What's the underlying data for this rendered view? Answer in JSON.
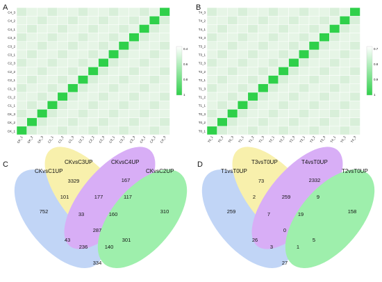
{
  "panels": {
    "A": "A",
    "B": "B",
    "C": "C",
    "D": "D"
  },
  "heatmap_A": {
    "rows": [
      "C4_3",
      "C4_2",
      "C4_1",
      "C3_3",
      "C3_2",
      "C3_1",
      "C2_3",
      "C2_2",
      "C2_1",
      "C1_3",
      "C1_2",
      "C1_1",
      "CK_3",
      "CK_2",
      "CK_1"
    ],
    "cols": [
      "CK_1",
      "CK_2",
      "CK_3",
      "C1_1",
      "C1_2",
      "C1_3",
      "C2_1",
      "C2_2",
      "C2_3",
      "C3_1",
      "C3_2",
      "C3_3",
      "C4_1",
      "C4_2",
      "C4_3"
    ],
    "legend_ticks": [
      "0.4",
      "0.6",
      "0.8",
      "1"
    ]
  },
  "heatmap_B": {
    "rows": [
      "T4_3",
      "T4_2",
      "T4_1",
      "T3_3",
      "T3_2",
      "T3_1",
      "T2_3",
      "T2_2",
      "T2_1",
      "T1_3",
      "T1_2",
      "T1_1",
      "T0_3",
      "T0_2",
      "T0_1"
    ],
    "cols": [
      "T0_1",
      "T0_2",
      "T0_3",
      "T1_1",
      "T1_2",
      "T1_3",
      "T2_1",
      "T2_2",
      "T2_3",
      "T3_1",
      "T3_2",
      "T3_3",
      "T4_1",
      "T4_2",
      "T4_3"
    ],
    "legend_ticks": [
      "0.7",
      "0.8",
      "0.9",
      "1"
    ]
  },
  "venn_C": {
    "sets": [
      "CKvsC1UP",
      "CKvsC3UP",
      "CKvsC4UP",
      "CKvsC2UP"
    ],
    "regions": {
      "only1": "752",
      "only3": "3329",
      "only4": "167",
      "only2": "310",
      "r13": "101",
      "r34": "177",
      "r42": "117",
      "r134": "33",
      "r342": "160",
      "r1342": "287",
      "r14": "43",
      "r32": "301",
      "r142": "236",
      "r132": "140",
      "r12": "334"
    }
  },
  "venn_D": {
    "sets": [
      "T1vsT0UP",
      "T3vsT0UP",
      "T4vsT0UP",
      "T2vsT0UP"
    ],
    "regions": {
      "only1": "259",
      "only3": "73",
      "only4": "2332",
      "only2": "158",
      "r13": "2",
      "r34": "259",
      "r42": "9",
      "r134": "7",
      "r342": "19",
      "r1342": "0",
      "r14": "26",
      "r32": "5",
      "r142": "3",
      "r132": "1",
      "r12": "27"
    }
  },
  "colors": {
    "heat_high": "#2ecc4a",
    "heat_low": "#f4fbf4",
    "venn_blue": "#8fb4f0",
    "venn_yellow": "#f3e56a",
    "venn_purple": "#b96df0",
    "venn_green": "#4fe26a"
  }
}
